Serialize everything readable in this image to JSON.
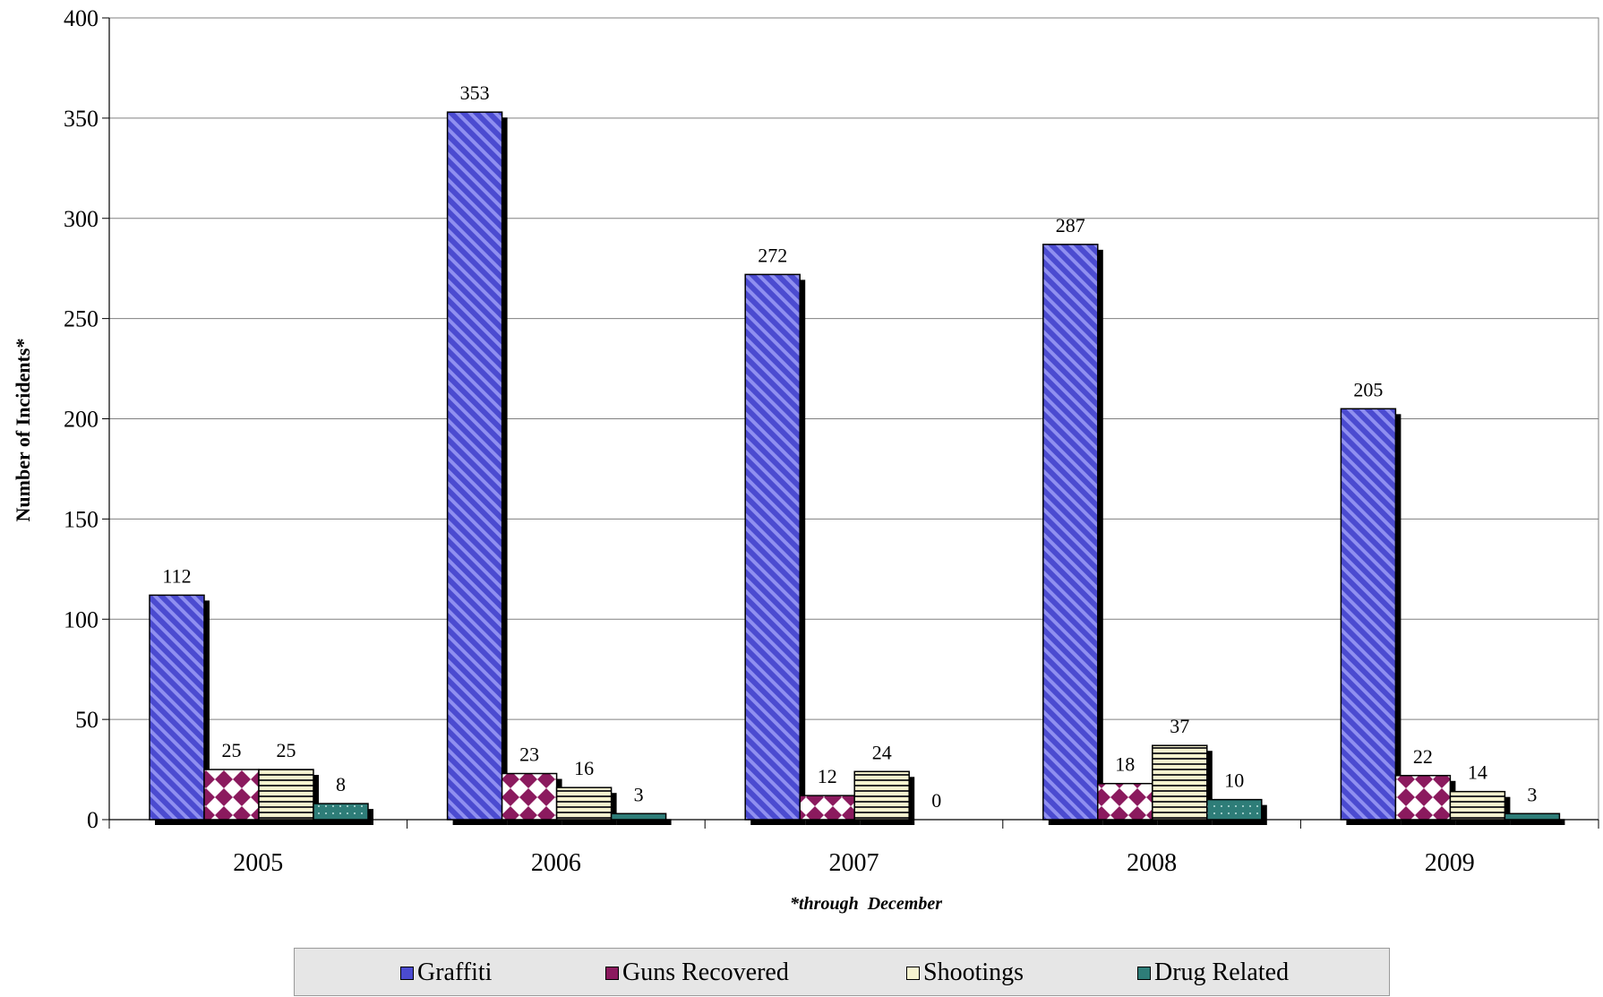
{
  "chart_data": {
    "type": "bar",
    "categories": [
      "2005",
      "2006",
      "2007",
      "2008",
      "2009"
    ],
    "series": [
      {
        "name": "Graffiti",
        "values": [
          112,
          353,
          272,
          287,
          205
        ],
        "color": "#5b5bd6",
        "pattern": "diagonal-stripes"
      },
      {
        "name": "Guns Recovered",
        "values": [
          25,
          23,
          12,
          18,
          22
        ],
        "color": "#8b1a5e",
        "pattern": "diamond-check"
      },
      {
        "name": "Shootings",
        "values": [
          25,
          16,
          24,
          37,
          14
        ],
        "color": "#f3f0c4",
        "pattern": "horizontal-stripes"
      },
      {
        "name": "Drug Related",
        "values": [
          8,
          3,
          0,
          10,
          3
        ],
        "color": "#2e7d78",
        "pattern": "dots"
      }
    ],
    "ylabel": "Number of Incidents*",
    "xlabel": "",
    "note": "*through  December",
    "ylim": [
      0,
      400
    ],
    "yticks": [
      0,
      50,
      100,
      150,
      200,
      250,
      300,
      350,
      400
    ],
    "grid": true,
    "legend_position": "bottom"
  }
}
